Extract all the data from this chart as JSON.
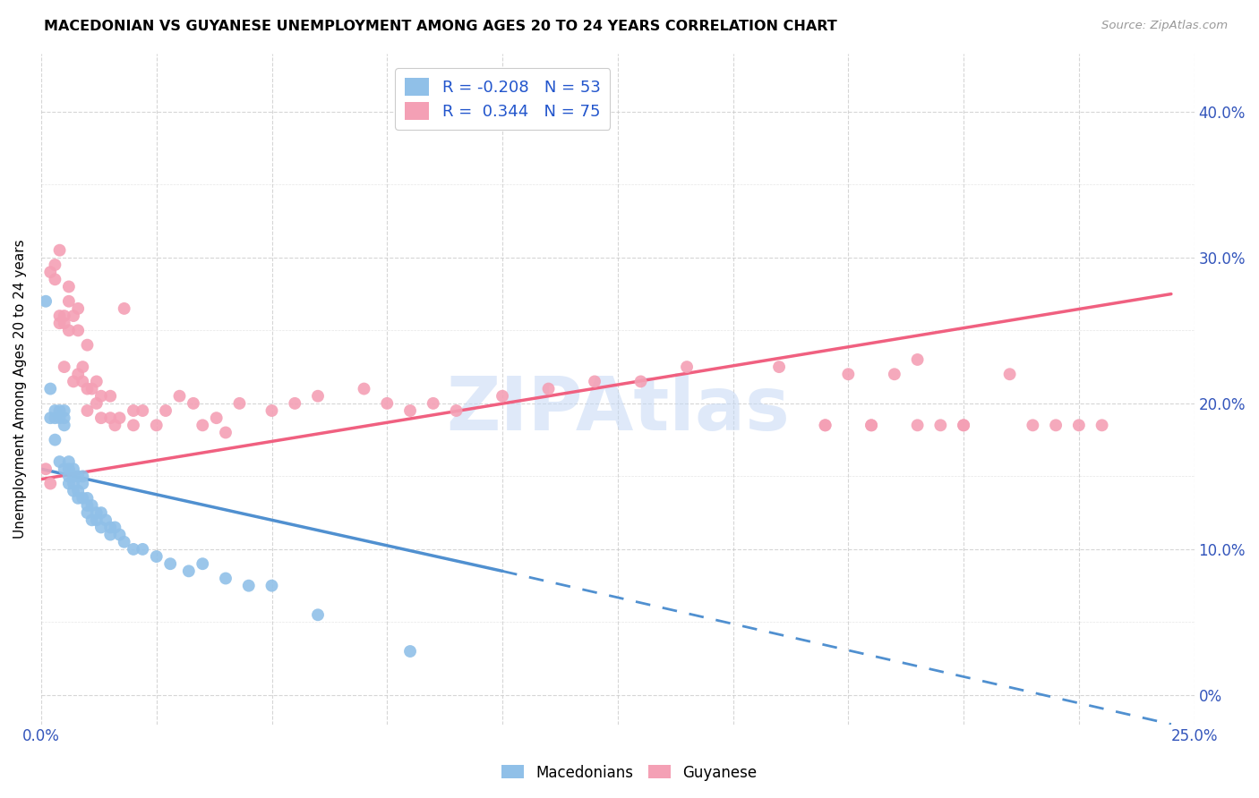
{
  "title": "MACEDONIAN VS GUYANESE UNEMPLOYMENT AMONG AGES 20 TO 24 YEARS CORRELATION CHART",
  "source": "Source: ZipAtlas.com",
  "ylabel": "Unemployment Among Ages 20 to 24 years",
  "xlim": [
    0.0,
    0.25
  ],
  "ylim": [
    -0.02,
    0.44
  ],
  "macedonian_color": "#90c0e8",
  "guyanese_color": "#f4a0b5",
  "macedonian_line_color": "#5090d0",
  "guyanese_line_color": "#f06080",
  "macedonian_R": -0.208,
  "macedonian_N": 53,
  "guyanese_R": 0.344,
  "guyanese_N": 75,
  "legend_R_color": "#2255cc",
  "watermark": "ZIPAtlas",
  "watermark_color": "#c5d8f5",
  "mac_trend_x0": 0.0,
  "mac_trend_y0": 0.155,
  "mac_trend_x1": 0.1,
  "mac_trend_y1": 0.085,
  "mac_trend_xend": 0.245,
  "mac_trend_yend": -0.02,
  "guy_trend_x0": 0.0,
  "guy_trend_y0": 0.148,
  "guy_trend_x1": 0.245,
  "guy_trend_y1": 0.275,
  "macedonian_x": [
    0.001,
    0.002,
    0.002,
    0.003,
    0.003,
    0.003,
    0.004,
    0.004,
    0.004,
    0.005,
    0.005,
    0.005,
    0.005,
    0.006,
    0.006,
    0.006,
    0.006,
    0.007,
    0.007,
    0.007,
    0.007,
    0.008,
    0.008,
    0.008,
    0.009,
    0.009,
    0.009,
    0.01,
    0.01,
    0.01,
    0.011,
    0.011,
    0.012,
    0.012,
    0.013,
    0.013,
    0.014,
    0.015,
    0.015,
    0.016,
    0.017,
    0.018,
    0.02,
    0.022,
    0.025,
    0.028,
    0.032,
    0.035,
    0.04,
    0.045,
    0.05,
    0.06,
    0.08
  ],
  "macedonian_y": [
    0.27,
    0.19,
    0.21,
    0.175,
    0.19,
    0.195,
    0.19,
    0.195,
    0.16,
    0.195,
    0.19,
    0.155,
    0.185,
    0.15,
    0.145,
    0.155,
    0.16,
    0.155,
    0.14,
    0.145,
    0.15,
    0.15,
    0.135,
    0.14,
    0.135,
    0.145,
    0.15,
    0.13,
    0.125,
    0.135,
    0.13,
    0.12,
    0.12,
    0.125,
    0.115,
    0.125,
    0.12,
    0.115,
    0.11,
    0.115,
    0.11,
    0.105,
    0.1,
    0.1,
    0.095,
    0.09,
    0.085,
    0.09,
    0.08,
    0.075,
    0.075,
    0.055,
    0.03
  ],
  "guyanese_x": [
    0.001,
    0.002,
    0.002,
    0.003,
    0.003,
    0.004,
    0.004,
    0.004,
    0.005,
    0.005,
    0.005,
    0.006,
    0.006,
    0.006,
    0.007,
    0.007,
    0.008,
    0.008,
    0.008,
    0.009,
    0.009,
    0.01,
    0.01,
    0.01,
    0.011,
    0.012,
    0.012,
    0.013,
    0.013,
    0.015,
    0.015,
    0.016,
    0.017,
    0.018,
    0.02,
    0.02,
    0.022,
    0.025,
    0.027,
    0.03,
    0.033,
    0.035,
    0.038,
    0.04,
    0.043,
    0.05,
    0.055,
    0.06,
    0.07,
    0.075,
    0.08,
    0.085,
    0.09,
    0.1,
    0.11,
    0.12,
    0.13,
    0.14,
    0.16,
    0.17,
    0.175,
    0.18,
    0.185,
    0.19,
    0.195,
    0.2,
    0.21,
    0.215,
    0.22,
    0.225,
    0.23,
    0.17,
    0.18,
    0.19,
    0.2
  ],
  "guyanese_y": [
    0.155,
    0.29,
    0.145,
    0.295,
    0.285,
    0.305,
    0.255,
    0.26,
    0.26,
    0.255,
    0.225,
    0.27,
    0.25,
    0.28,
    0.215,
    0.26,
    0.265,
    0.22,
    0.25,
    0.225,
    0.215,
    0.24,
    0.195,
    0.21,
    0.21,
    0.2,
    0.215,
    0.19,
    0.205,
    0.205,
    0.19,
    0.185,
    0.19,
    0.265,
    0.185,
    0.195,
    0.195,
    0.185,
    0.195,
    0.205,
    0.2,
    0.185,
    0.19,
    0.18,
    0.2,
    0.195,
    0.2,
    0.205,
    0.21,
    0.2,
    0.195,
    0.2,
    0.195,
    0.205,
    0.21,
    0.215,
    0.215,
    0.225,
    0.225,
    0.185,
    0.22,
    0.185,
    0.22,
    0.23,
    0.185,
    0.185,
    0.22,
    0.185,
    0.185,
    0.185,
    0.185,
    0.185,
    0.185,
    0.185,
    0.185
  ]
}
